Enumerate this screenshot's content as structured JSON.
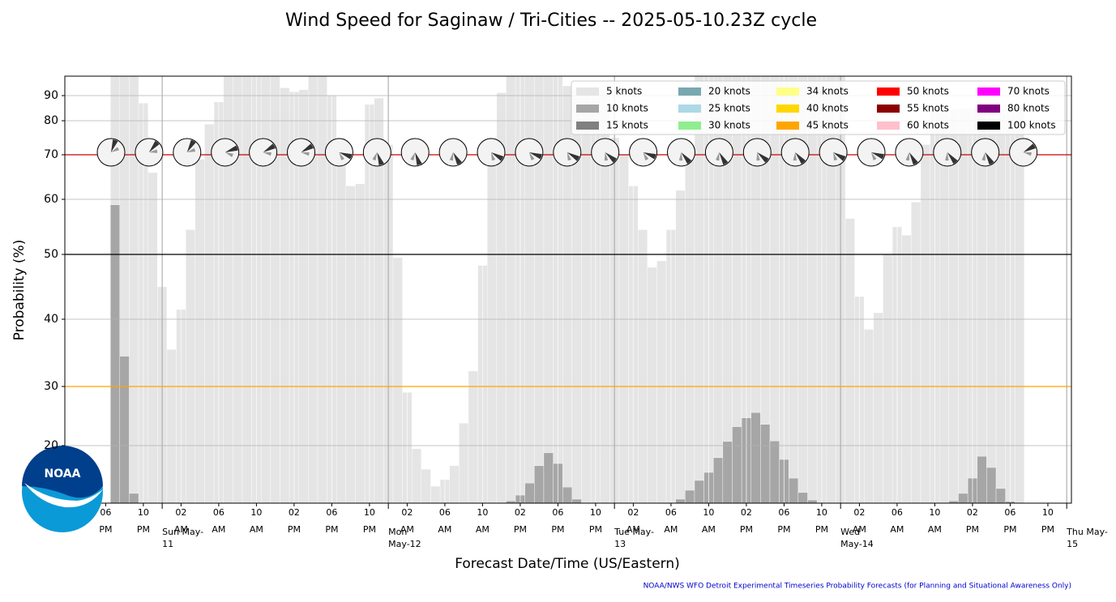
{
  "chart_data": {
    "type": "bar",
    "title": "Wind Speed for Saginaw / Tri-Cities -- 2025-05-10.23Z cycle",
    "ylabel": "Probability (%)",
    "xlabel": "Forecast Date/Time (US/Eastern)",
    "footer": "NOAA/NWS WFO Detroit Experimental Timeseries Probability Forecasts (for Planning and Situational Awareness Only)",
    "logo_text": "NOAA",
    "x": [
      "2025-05-10T19:00",
      "2025-05-10T20:00",
      "2025-05-10T21:00",
      "2025-05-10T22:00",
      "2025-05-10T23:00",
      "2025-05-11T00:00",
      "2025-05-11T01:00",
      "2025-05-11T02:00",
      "2025-05-11T03:00",
      "2025-05-11T04:00",
      "2025-05-11T05:00",
      "2025-05-11T06:00",
      "2025-05-11T07:00",
      "2025-05-11T08:00",
      "2025-05-11T09:00",
      "2025-05-11T10:00",
      "2025-05-11T11:00",
      "2025-05-11T12:00",
      "2025-05-11T13:00",
      "2025-05-11T14:00",
      "2025-05-11T15:00",
      "2025-05-11T16:00",
      "2025-05-11T17:00",
      "2025-05-11T18:00",
      "2025-05-11T19:00",
      "2025-05-11T20:00",
      "2025-05-11T21:00",
      "2025-05-11T22:00",
      "2025-05-11T23:00",
      "2025-05-12T00:00",
      "2025-05-12T01:00",
      "2025-05-12T02:00",
      "2025-05-12T03:00",
      "2025-05-12T04:00",
      "2025-05-12T05:00",
      "2025-05-12T06:00",
      "2025-05-12T07:00",
      "2025-05-12T08:00",
      "2025-05-12T09:00",
      "2025-05-12T10:00",
      "2025-05-12T11:00",
      "2025-05-12T12:00",
      "2025-05-12T13:00",
      "2025-05-12T14:00",
      "2025-05-12T15:00",
      "2025-05-12T16:00",
      "2025-05-12T17:00",
      "2025-05-12T18:00",
      "2025-05-12T19:00",
      "2025-05-12T20:00",
      "2025-05-12T21:00",
      "2025-05-12T22:00",
      "2025-05-12T23:00",
      "2025-05-13T00:00",
      "2025-05-13T01:00",
      "2025-05-13T02:00",
      "2025-05-13T03:00",
      "2025-05-13T04:00",
      "2025-05-13T05:00",
      "2025-05-13T06:00",
      "2025-05-13T07:00",
      "2025-05-13T08:00",
      "2025-05-13T09:00",
      "2025-05-13T10:00",
      "2025-05-13T11:00",
      "2025-05-13T12:00",
      "2025-05-13T13:00",
      "2025-05-13T14:00",
      "2025-05-13T15:00",
      "2025-05-13T16:00",
      "2025-05-13T17:00",
      "2025-05-13T18:00",
      "2025-05-13T19:00",
      "2025-05-13T20:00",
      "2025-05-13T21:00",
      "2025-05-13T22:00",
      "2025-05-13T23:00",
      "2025-05-14T00:00",
      "2025-05-14T01:00",
      "2025-05-14T02:00",
      "2025-05-14T03:00",
      "2025-05-14T04:00",
      "2025-05-14T05:00",
      "2025-05-14T06:00",
      "2025-05-14T07:00",
      "2025-05-14T08:00",
      "2025-05-14T09:00",
      "2025-05-14T10:00",
      "2025-05-14T11:00",
      "2025-05-14T12:00",
      "2025-05-14T13:00",
      "2025-05-14T14:00",
      "2025-05-14T15:00",
      "2025-05-14T16:00",
      "2025-05-14T17:00",
      "2025-05-14T18:00",
      "2025-05-14T19:00"
    ],
    "series": [
      {
        "name": "5 knots",
        "color": "#e5e5e5",
        "values": [
          100,
          100,
          100,
          87,
          66,
          45,
          35.5,
          41.5,
          54.5,
          69,
          79,
          87.5,
          100,
          100,
          100,
          100,
          100,
          100,
          94,
          92,
          93,
          100,
          100,
          90,
          75,
          63,
          63.5,
          86.5,
          89,
          73,
          49.5,
          29,
          18.9,
          11.8,
          5.9,
          8.2,
          13,
          23.8,
          32.3,
          48.3,
          75,
          91.5,
          100,
          100,
          100,
          100,
          100,
          100,
          95,
          93,
          93,
          93,
          93,
          75,
          70,
          63,
          54.5,
          48,
          49,
          54.5,
          62,
          72,
          100,
          100,
          100,
          100,
          100,
          100,
          100,
          100,
          100,
          100,
          100,
          100,
          100,
          100,
          100,
          100,
          56.5,
          43.5,
          38.5,
          41,
          50,
          55,
          53.5,
          59.5,
          73,
          85,
          85,
          85,
          85,
          85,
          85,
          85,
          85,
          85,
          85
        ]
      },
      {
        "name": "10 knots",
        "color": "#a6a6a6",
        "values": [
          59,
          34.5,
          3.4,
          0,
          0,
          0,
          0,
          0,
          0,
          0,
          0,
          0,
          0,
          0,
          0,
          0,
          0,
          0,
          0,
          0,
          0,
          0,
          0,
          0,
          0,
          0,
          0,
          0,
          0,
          0,
          0,
          0,
          0,
          0,
          0,
          0,
          0,
          0,
          0,
          0,
          0,
          0,
          0.8,
          2.8,
          7,
          13,
          17.5,
          13.8,
          5.6,
          1.4,
          0,
          0,
          0,
          0,
          0,
          0,
          0,
          0,
          0,
          0,
          1.4,
          4.5,
          7.9,
          10.7,
          15.8,
          20.7,
          23.2,
          24.7,
          25.6,
          23.6,
          20.8,
          15.2,
          8.7,
          3.7,
          1.1,
          0,
          0,
          0,
          0,
          0,
          0,
          0,
          0,
          0,
          0,
          0,
          0,
          0,
          0,
          0.8,
          3.4,
          8.7,
          16.3,
          12.4,
          5.1,
          0.6,
          0
        ]
      },
      {
        "name": "15 knots",
        "color": "#808080"
      },
      {
        "name": "20 knots",
        "color": "#78a8b0"
      },
      {
        "name": "25 knots",
        "color": "#add8e6"
      },
      {
        "name": "30 knots",
        "color": "#90ee90"
      },
      {
        "name": "34 knots",
        "color": "#ffff88"
      },
      {
        "name": "40 knots",
        "color": "#ffd700"
      },
      {
        "name": "45 knots",
        "color": "#ffa500"
      },
      {
        "name": "50 knots",
        "color": "#ff0000"
      },
      {
        "name": "55 knots",
        "color": "#8b0000"
      },
      {
        "name": "60 knots",
        "color": "#ffc0cb"
      },
      {
        "name": "70 knots",
        "color": "#ff00ff"
      },
      {
        "name": "80 knots",
        "color": "#800080"
      },
      {
        "name": "100 knots",
        "color": "#000000"
      }
    ],
    "xlim": [
      "2025-05-10T13:40",
      "2025-05-15T00:30"
    ],
    "xticks": [
      {
        "value": "2025-05-10T18:00",
        "label": "06 PM"
      },
      {
        "value": "2025-05-10T22:00",
        "label": "10 PM"
      },
      {
        "value": "2025-05-11T02:00",
        "label": "02 AM"
      },
      {
        "value": "2025-05-11T06:00",
        "label": "06 AM"
      },
      {
        "value": "2025-05-11T10:00",
        "label": "10 AM"
      },
      {
        "value": "2025-05-11T14:00",
        "label": "02 PM"
      },
      {
        "value": "2025-05-11T18:00",
        "label": "06 PM"
      },
      {
        "value": "2025-05-11T22:00",
        "label": "10 PM"
      },
      {
        "value": "2025-05-12T02:00",
        "label": "02 AM"
      },
      {
        "value": "2025-05-12T06:00",
        "label": "06 AM"
      },
      {
        "value": "2025-05-12T10:00",
        "label": "10 AM"
      },
      {
        "value": "2025-05-12T14:00",
        "label": "02 PM"
      },
      {
        "value": "2025-05-12T18:00",
        "label": "06 PM"
      },
      {
        "value": "2025-05-12T22:00",
        "label": "10 PM"
      },
      {
        "value": "2025-05-13T02:00",
        "label": "02 AM"
      },
      {
        "value": "2025-05-13T06:00",
        "label": "06 AM"
      },
      {
        "value": "2025-05-13T10:00",
        "label": "10 AM"
      },
      {
        "value": "2025-05-13T14:00",
        "label": "02 PM"
      },
      {
        "value": "2025-05-13T18:00",
        "label": "06 PM"
      },
      {
        "value": "2025-05-13T22:00",
        "label": "10 PM"
      },
      {
        "value": "2025-05-14T02:00",
        "label": "02 AM"
      },
      {
        "value": "2025-05-14T06:00",
        "label": "06 AM"
      },
      {
        "value": "2025-05-14T10:00",
        "label": "10 AM"
      },
      {
        "value": "2025-05-14T14:00",
        "label": "02 PM"
      },
      {
        "value": "2025-05-14T18:00",
        "label": "06 PM"
      },
      {
        "value": "2025-05-14T22:00",
        "label": "10 PM"
      }
    ],
    "day_ticks": [
      {
        "value": "2025-05-11T00:00",
        "label": "Sun May-11"
      },
      {
        "value": "2025-05-12T00:00",
        "label": "Mon May-12"
      },
      {
        "value": "2025-05-13T00:00",
        "label": "Tue May-13"
      },
      {
        "value": "2025-05-14T00:00",
        "label": "Wed May-14"
      },
      {
        "value": "2025-05-15T00:00",
        "label": "Thu May-15"
      }
    ],
    "ylim": [
      0,
      100
    ],
    "yticks": [
      20,
      30,
      40,
      50,
      60,
      70,
      80,
      90
    ],
    "grid": true,
    "reference_lines": [
      {
        "value": 70,
        "color": "#cc0000"
      },
      {
        "value": 50,
        "color": "#000000"
      },
      {
        "value": 30,
        "color": "#ffa500"
      }
    ],
    "legend_position": "upper right"
  }
}
